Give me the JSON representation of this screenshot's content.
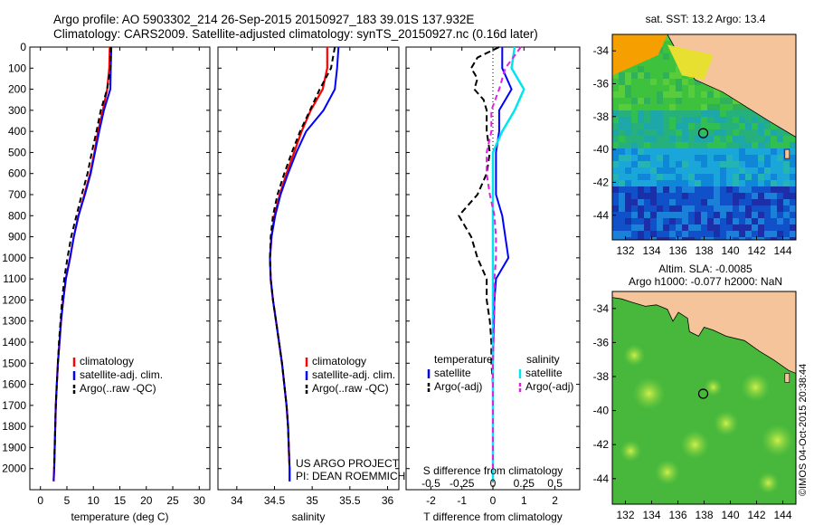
{
  "title_line1": "Argo profile: AO 5903302_214 26-Sep-2015 20150927_183 39.01S 137.932E",
  "title_line2": "Climatology: CARS2009. Satellite-adjusted climatology: synTS_20150927.nc (0.16d later)",
  "sst_title": "sat. SST: 13.2 Argo: 13.4",
  "sla_title1": "Altim. SLA: -0.0085",
  "sla_title2": "Argo h1000: -0.077 h2000: NaN",
  "credit": "©IMOS 04-Oct-2015 20:38:44",
  "project_line1": "US ARGO PROJECT",
  "project_line2": "PI: DEAN ROEMMICH",
  "colors": {
    "climatology": "#ff0000",
    "satellite": "#0000ff",
    "argo": "#000000",
    "sal_satellite": "#00e5ee",
    "sal_argo": "#e020e0",
    "land": "#f6c49a"
  },
  "chart_data": [
    {
      "id": "temperature",
      "type": "line",
      "xlabel": "temperature (deg C)",
      "ylabel": "",
      "xlim": [
        -2,
        32
      ],
      "ylim": [
        2100,
        0
      ],
      "xticks": [
        0,
        5,
        10,
        15,
        20,
        25,
        30
      ],
      "yticks": [
        0,
        100,
        200,
        300,
        400,
        500,
        600,
        700,
        800,
        900,
        1000,
        1100,
        1200,
        1300,
        1400,
        1500,
        1600,
        1700,
        1800,
        1900,
        2000
      ],
      "legend": [
        "climatology",
        "satellite-adj. clim.",
        "Argo(..raw -QC)"
      ],
      "series": [
        {
          "name": "climatology",
          "depth": [
            0,
            100,
            200,
            300,
            400,
            500,
            600,
            700,
            800,
            900,
            1000,
            1100,
            1200,
            1300,
            1400,
            1500,
            1600,
            1700,
            1800,
            1900,
            2000,
            2060
          ],
          "values": [
            13.1,
            13.0,
            12.6,
            11.8,
            10.9,
            10.2,
            9.4,
            8.3,
            7.2,
            6.3,
            5.6,
            4.8,
            4.3,
            3.9,
            3.6,
            3.3,
            3.1,
            2.9,
            2.8,
            2.7,
            2.6,
            2.5
          ]
        },
        {
          "name": "satellite-adj. clim.",
          "depth": [
            0,
            100,
            200,
            300,
            400,
            500,
            600,
            700,
            800,
            900,
            1000,
            1100,
            1200,
            1300,
            1400,
            1500,
            1600,
            1700,
            1800,
            1900,
            2000,
            2060
          ],
          "values": [
            13.4,
            13.3,
            13.2,
            12.0,
            11.1,
            10.3,
            9.5,
            8.4,
            7.2,
            6.3,
            5.6,
            4.8,
            4.3,
            3.9,
            3.6,
            3.3,
            3.1,
            2.9,
            2.8,
            2.7,
            2.6,
            2.5
          ]
        },
        {
          "name": "Argo(..raw -QC)",
          "depth": [
            0,
            100,
            200,
            300,
            400,
            500,
            600,
            700,
            800,
            900,
            1000,
            1100,
            1200,
            1300,
            1400,
            1500,
            1600,
            1700,
            1800,
            1900,
            2000
          ],
          "values": [
            13.3,
            13.2,
            12.6,
            11.4,
            10.6,
            9.7,
            8.9,
            7.8,
            6.8,
            5.8,
            5.1,
            4.5,
            4.1,
            3.8,
            3.5,
            3.3,
            3.1,
            2.9,
            2.8,
            2.7,
            2.6
          ]
        }
      ]
    },
    {
      "id": "salinity",
      "type": "line",
      "xlabel": "salinity",
      "ylabel": "",
      "xlim": [
        33.75,
        36.15
      ],
      "ylim": [
        2100,
        0
      ],
      "xticks": [
        34,
        34.5,
        35,
        35.5,
        36
      ],
      "legend": [
        "climatology",
        "satellite-adj. clim.",
        "Argo(..raw -QC)"
      ],
      "series": [
        {
          "name": "climatology",
          "depth": [
            0,
            100,
            200,
            300,
            400,
            500,
            600,
            700,
            800,
            900,
            1000,
            1100,
            1200,
            1300,
            1400,
            1500,
            1600,
            1700,
            1800,
            1900,
            2000,
            2060
          ],
          "values": [
            35.2,
            35.2,
            35.14,
            34.98,
            34.86,
            34.76,
            34.66,
            34.57,
            34.5,
            34.46,
            34.44,
            34.45,
            34.48,
            34.52,
            34.56,
            34.6,
            34.63,
            34.66,
            34.68,
            34.69,
            34.7,
            34.7
          ]
        },
        {
          "name": "satellite-adj. clim.",
          "depth": [
            0,
            100,
            200,
            300,
            400,
            500,
            600,
            700,
            800,
            900,
            1000,
            1100,
            1200,
            1300,
            1400,
            1500,
            1600,
            1700,
            1800,
            1900,
            2000,
            2060
          ],
          "values": [
            35.35,
            35.33,
            35.3,
            35.15,
            34.92,
            34.79,
            34.68,
            34.58,
            34.51,
            34.46,
            34.44,
            34.45,
            34.48,
            34.52,
            34.56,
            34.6,
            34.63,
            34.66,
            34.68,
            34.69,
            34.7,
            34.7
          ]
        },
        {
          "name": "Argo(..raw -QC)",
          "depth": [
            0,
            100,
            200,
            300,
            400,
            500,
            600,
            700,
            800,
            900,
            1000,
            1100,
            1200,
            1300,
            1400,
            1500,
            1600,
            1700,
            1800,
            1900,
            2000
          ],
          "values": [
            35.3,
            35.25,
            35.1,
            34.97,
            34.84,
            34.73,
            34.63,
            34.54,
            34.48,
            34.45,
            34.44,
            34.45,
            34.48,
            34.52,
            34.56,
            34.6,
            34.63,
            34.66,
            34.68,
            34.69,
            34.7
          ]
        }
      ]
    },
    {
      "id": "difference",
      "type": "line",
      "xlabel": "T difference from climatology",
      "xlabel_top": "S difference from climatology",
      "xlim": [
        -2.8,
        2.8
      ],
      "ylim": [
        2100,
        0
      ],
      "xticks": [
        -2,
        -1,
        0,
        1,
        2
      ],
      "xtick_labels": [
        "-2",
        "-1",
        "0",
        "1",
        "2"
      ],
      "xticks_top": [
        -2,
        -1,
        0,
        1,
        2
      ],
      "xtick_labels_top": [
        "-0.5",
        "-0.25",
        "0",
        "0.25",
        "0.5"
      ],
      "legend_temperature": {
        "heading": "temperature",
        "items": [
          "satellite",
          "Argo(-adj)"
        ]
      },
      "legend_salinity": {
        "heading": "salinity",
        "items": [
          "satellite",
          "Argo(-adj)"
        ]
      },
      "series": [
        {
          "name": "temperature satellite",
          "depth": [
            0,
            100,
            200,
            300,
            400,
            500,
            600,
            700,
            800,
            900,
            1000,
            1100,
            1200,
            1500,
            2000,
            2060
          ],
          "values": [
            0.3,
            0.3,
            0.6,
            0.2,
            0.2,
            0.1,
            0.1,
            0.1,
            0.3,
            0.4,
            0.5,
            0.1,
            0.05,
            0,
            0,
            0
          ]
        },
        {
          "name": "temperature Argo(-adj)",
          "depth": [
            0,
            50,
            100,
            150,
            200,
            250,
            300,
            400,
            500,
            600,
            700,
            800,
            900,
            1000,
            1100,
            1200,
            1300,
            1400,
            1500,
            1600,
            2000
          ],
          "values": [
            0.2,
            -0.5,
            -0.7,
            -0.5,
            -0.6,
            -0.3,
            -0.2,
            -0.2,
            -0.1,
            -0.2,
            -0.5,
            -1.1,
            -0.7,
            -0.5,
            -0.2,
            -0.2,
            -0.1,
            -0.05,
            -0.05,
            0,
            0
          ]
        },
        {
          "name": "salinity satellite",
          "depth": [
            0,
            100,
            200,
            300,
            400,
            500,
            600,
            800,
            1000,
            1200,
            1500,
            2000,
            2060
          ],
          "values": [
            0.7,
            0.6,
            1.0,
            0.7,
            0.3,
            0.0,
            0.0,
            0.0,
            0.0,
            0.0,
            0.0,
            0.0,
            0.0
          ]
        },
        {
          "name": "salinity Argo(-adj)",
          "depth": [
            0,
            100,
            200,
            300,
            400,
            500,
            600,
            700,
            800,
            900,
            1000,
            1100,
            1200,
            1300,
            1400,
            1500,
            1600,
            1700,
            1800,
            2000
          ],
          "values": [
            0.9,
            0.4,
            0.2,
            -0.05,
            -0.05,
            -0.2,
            -0.2,
            -0.1,
            0.05,
            0.1,
            0.1,
            0.05,
            0.05,
            0.02,
            0.02,
            0.0,
            0.0,
            0.0,
            0.0,
            0.0
          ]
        }
      ]
    },
    {
      "id": "sst_map",
      "type": "heatmap",
      "title": "sat. SST: 13.2 Argo: 13.4",
      "xlim": [
        131,
        145
      ],
      "ylim": [
        -45.5,
        -33
      ],
      "xticks": [
        132,
        134,
        136,
        138,
        140,
        142,
        144
      ],
      "yticks": [
        -34,
        -36,
        -38,
        -40,
        -42,
        -44
      ],
      "argo_position": [
        137.932,
        -39.01
      ]
    },
    {
      "id": "sla_map",
      "type": "heatmap",
      "title": "Altim. SLA: -0.0085",
      "xlim": [
        131,
        145
      ],
      "ylim": [
        -45.5,
        -33
      ],
      "xticks": [
        132,
        134,
        136,
        138,
        140,
        142,
        144
      ],
      "yticks": [
        -34,
        -36,
        -38,
        -40,
        -42,
        -44
      ],
      "argo_position": [
        137.932,
        -39.01
      ]
    }
  ]
}
